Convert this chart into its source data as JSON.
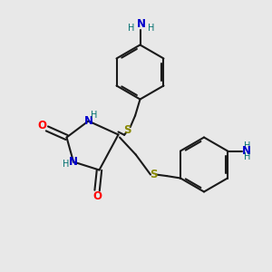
{
  "background_color": "#e8e8e8",
  "bond_color": "#1a1a1a",
  "N_color": "#0000cc",
  "O_color": "#ff0000",
  "S_color": "#888800",
  "H_color": "#007070",
  "figsize": [
    3.0,
    3.0
  ],
  "dpi": 100,
  "xlim": [
    0,
    10
  ],
  "ylim": [
    0,
    10
  ]
}
